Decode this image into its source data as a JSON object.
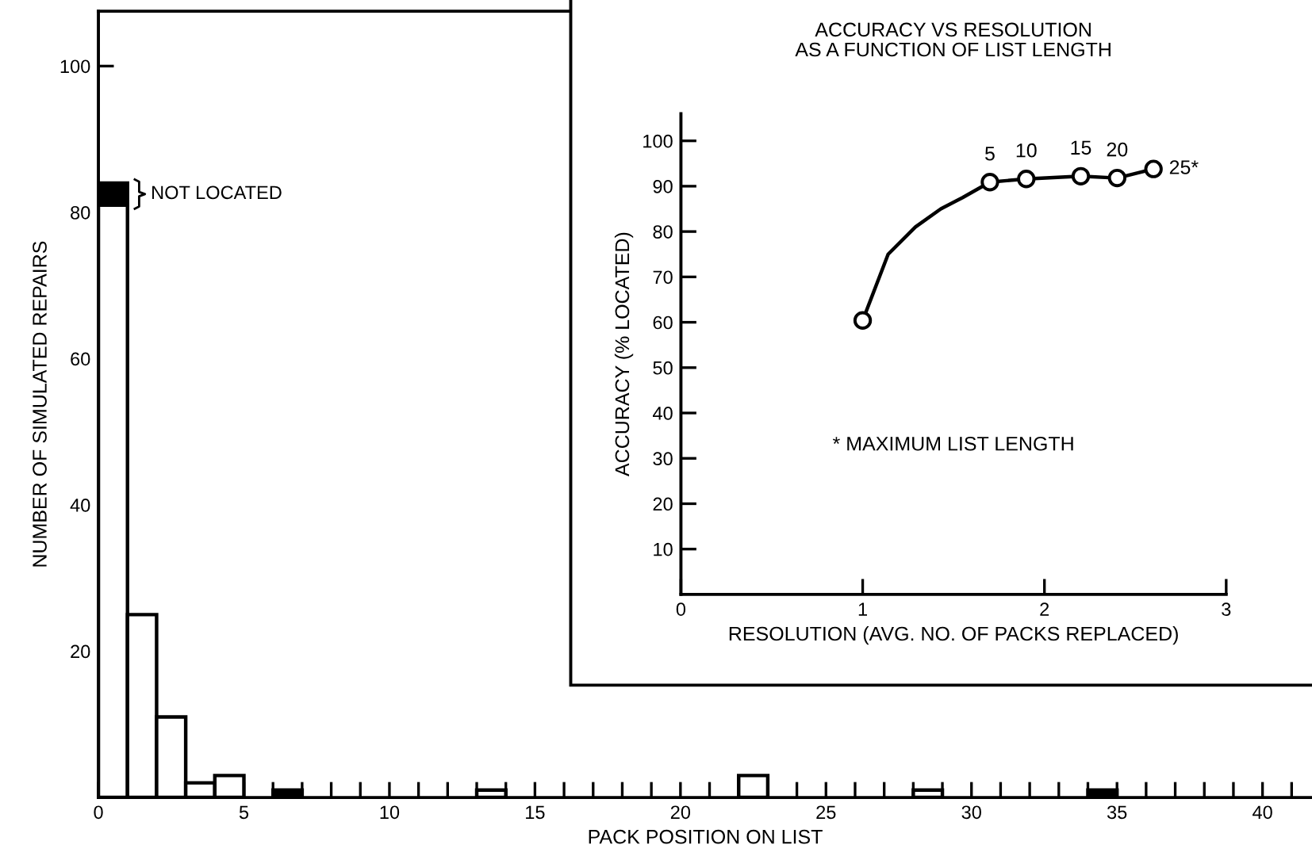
{
  "chart_data": [
    {
      "type": "bar",
      "stacked": true,
      "xlabel": "PACK POSITION ON LIST",
      "ylabel": "NUMBER OF SIMULATED REPAIRS",
      "x": [
        0.5,
        1.5,
        2.5,
        3.5,
        4.5,
        6.5,
        13.5,
        22.5,
        28.5,
        34.5
      ],
      "series": [
        {
          "color": "#ffffff",
          "values": [
            81,
            25,
            11,
            2,
            3,
            null,
            1,
            3,
            1,
            null
          ]
        },
        {
          "color": "#000000",
          "values": [
            3,
            null,
            null,
            null,
            null,
            1,
            null,
            null,
            null,
            1
          ]
        }
      ],
      "annotations": [
        {
          "text": "NOT LOCATED",
          "x": 1,
          "y": 82.5
        }
      ],
      "xlim": [
        0,
        41.7
      ],
      "ylim": [
        0,
        107.5
      ],
      "xticks": [
        0,
        {
          "value": 1,
          "label": null
        },
        {
          "value": 2,
          "label": null
        },
        {
          "value": 3,
          "label": null
        },
        {
          "value": 4,
          "label": null
        },
        5,
        {
          "value": 6,
          "label": null
        },
        {
          "value": 7,
          "label": null
        },
        {
          "value": 8,
          "label": null
        },
        {
          "value": 9,
          "label": null
        },
        10,
        {
          "value": 11,
          "label": null
        },
        {
          "value": 12,
          "label": null
        },
        {
          "value": 13,
          "label": null
        },
        {
          "value": 14,
          "label": null
        },
        15,
        {
          "value": 16,
          "label": null
        },
        {
          "value": 17,
          "label": null
        },
        {
          "value": 18,
          "label": null
        },
        {
          "value": 19,
          "label": null
        },
        20,
        {
          "value": 21,
          "label": null
        },
        {
          "value": 22,
          "label": null
        },
        {
          "value": 23,
          "label": null
        },
        {
          "value": 24,
          "label": null
        },
        25,
        {
          "value": 26,
          "label": null
        },
        {
          "value": 27,
          "label": null
        },
        {
          "value": 28,
          "label": null
        },
        {
          "value": 29,
          "label": null
        },
        30,
        {
          "value": 31,
          "label": null
        },
        {
          "value": 32,
          "label": null
        },
        {
          "value": 33,
          "label": null
        },
        {
          "value": 34,
          "label": null
        },
        35,
        {
          "value": 36,
          "label": null
        },
        {
          "value": 37,
          "label": null
        },
        {
          "value": 38,
          "label": null
        },
        {
          "value": 39,
          "label": null
        },
        40,
        {
          "value": 41,
          "label": null
        }
      ],
      "yticks": [
        20,
        40,
        60,
        80,
        100
      ]
    },
    {
      "type": "line",
      "title": "ACCURACY VS RESOLUTION\nAS A FUNCTION OF LIST LENGTH",
      "xlabel": "RESOLUTION (AVG. NO. OF PACKS REPLACED)",
      "ylabel": "ACCURACY (% LOCATED)",
      "x": [
        1.0,
        1.7,
        1.9,
        2.2,
        2.4,
        2.6
      ],
      "series": [
        {
          "type": "line",
          "color": "#000000",
          "x": [
            1.0,
            1.14,
            1.29,
            1.43,
            1.55,
            1.7,
            1.9,
            2.2,
            2.4,
            2.6
          ],
          "values": [
            60.4,
            75,
            81,
            85,
            87.5,
            90.9,
            91.6,
            92.2,
            91.8,
            93.8
          ],
          "marker": "none"
        },
        {
          "type": "scatter",
          "color": "#000000",
          "values": [
            60.4,
            90.9,
            91.6,
            92.2,
            91.8,
            93.8
          ],
          "marker": "circle"
        }
      ],
      "line_style": "solid",
      "annotations": [
        "* MAXIMUM LIST LENGTH",
        {
          "text": "5",
          "x": 1.7,
          "y": 90.9
        },
        {
          "text": "10",
          "x": 1.9,
          "y": 91.6
        },
        {
          "text": "15",
          "x": 2.2,
          "y": 92.2
        },
        {
          "text": "20",
          "x": 2.4,
          "y": 91.8
        },
        {
          "text": "25*",
          "x": 2.6,
          "y": 93.8
        }
      ],
      "xlim": [
        0,
        3
      ],
      "ylim": [
        0,
        106
      ],
      "xticks": [
        0,
        1,
        2,
        3
      ],
      "yticks": [
        10,
        20,
        30,
        40,
        50,
        60,
        70,
        80,
        90,
        100
      ]
    }
  ]
}
